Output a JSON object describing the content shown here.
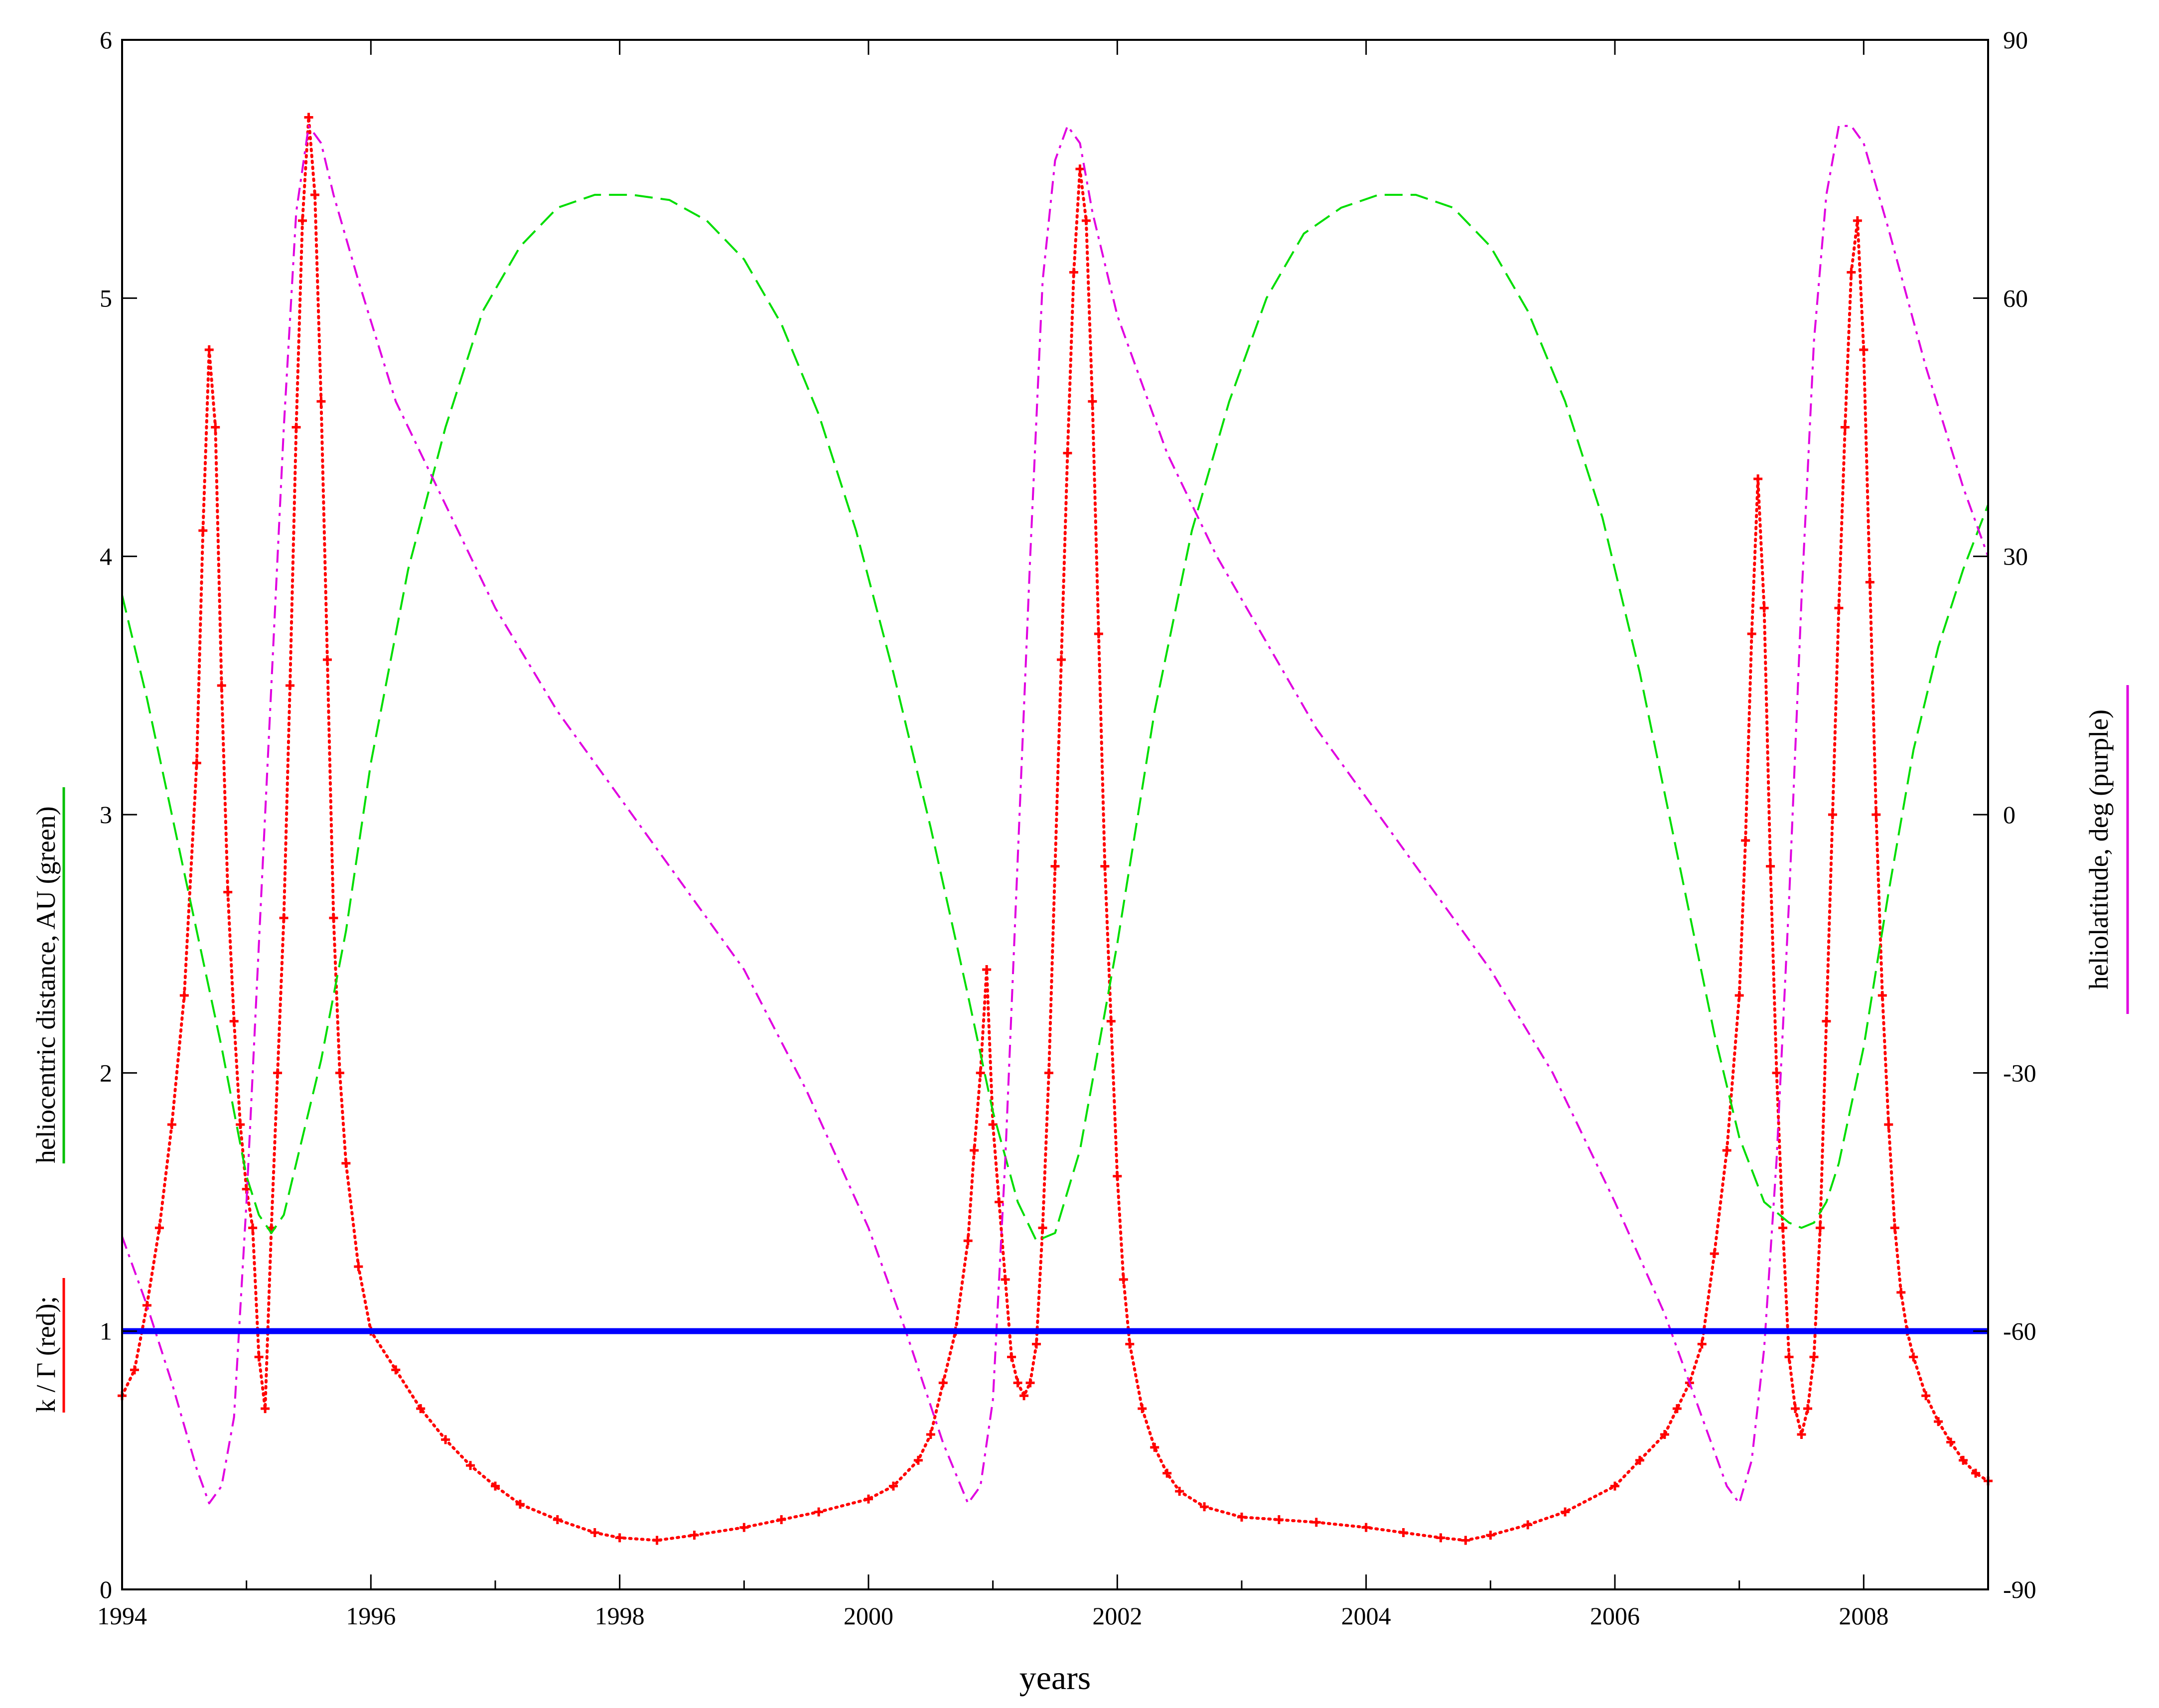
{
  "chart_data": {
    "type": "line",
    "xlabel": "years",
    "ylabel_left": {
      "parts": [
        {
          "text": "k / Γ (red);",
          "underline_color": "#ff0000"
        },
        {
          "text": "heliocentric distance, AU (green)",
          "underline_color": "#00c000"
        }
      ]
    },
    "ylabel_right": {
      "text": "heliolatitude, deg (purple)",
      "underline_color": "#e000e0"
    },
    "xlim": [
      1994,
      2009
    ],
    "ylim_left": [
      0,
      6
    ],
    "ylim_right": [
      -90,
      90
    ],
    "x_ticks": [
      1994,
      1996,
      1998,
      2000,
      2002,
      2004,
      2006,
      2008
    ],
    "x_tick_labels": [
      "1994",
      "1996",
      "1998",
      "2000",
      "2002",
      "2004",
      "2006",
      "2008"
    ],
    "y_left_ticks": [
      0,
      1,
      2,
      3,
      4,
      5,
      6
    ],
    "y_left_tick_labels": [
      "0",
      "1",
      "2",
      "3",
      "4",
      "5",
      "6"
    ],
    "y_right_ticks": [
      -90,
      -60,
      -30,
      0,
      30,
      60,
      90
    ],
    "y_right_tick_labels": [
      "-90",
      "-60",
      "-30",
      "0",
      "30",
      "60",
      "90"
    ],
    "grid": false,
    "reference_line": {
      "y": 1,
      "color": "#0000ff"
    },
    "series": [
      {
        "id": "kgamma",
        "style": "points",
        "color": "#ff0000",
        "axis": "left",
        "x": [
          1994.0,
          1994.1,
          1994.2,
          1994.3,
          1994.4,
          1994.5,
          1994.6,
          1994.65,
          1994.7,
          1994.75,
          1994.8,
          1994.85,
          1994.9,
          1994.95,
          1995.0,
          1995.05,
          1995.1,
          1995.15,
          1995.2,
          1995.25,
          1995.3,
          1995.35,
          1995.4,
          1995.45,
          1995.5,
          1995.55,
          1995.6,
          1995.65,
          1995.7,
          1995.75,
          1995.8,
          1995.9,
          1996.0,
          1996.2,
          1996.4,
          1996.6,
          1996.8,
          1997.0,
          1997.2,
          1997.5,
          1997.8,
          1998.0,
          1998.3,
          1998.6,
          1999.0,
          1999.3,
          1999.6,
          2000.0,
          2000.2,
          2000.4,
          2000.5,
          2000.6,
          2000.7,
          2000.8,
          2000.85,
          2000.9,
          2000.95,
          2001.0,
          2001.05,
          2001.1,
          2001.15,
          2001.2,
          2001.25,
          2001.3,
          2001.35,
          2001.4,
          2001.45,
          2001.5,
          2001.55,
          2001.6,
          2001.65,
          2001.7,
          2001.75,
          2001.8,
          2001.85,
          2001.9,
          2001.95,
          2002.0,
          2002.05,
          2002.1,
          2002.2,
          2002.3,
          2002.4,
          2002.5,
          2002.7,
          2003.0,
          2003.3,
          2003.6,
          2004.0,
          2004.3,
          2004.6,
          2004.8,
          2005.0,
          2005.3,
          2005.6,
          2006.0,
          2006.2,
          2006.4,
          2006.5,
          2006.6,
          2006.7,
          2006.8,
          2006.9,
          2007.0,
          2007.05,
          2007.1,
          2007.15,
          2007.2,
          2007.25,
          2007.3,
          2007.35,
          2007.4,
          2007.45,
          2007.5,
          2007.55,
          2007.6,
          2007.65,
          2007.7,
          2007.75,
          2007.8,
          2007.85,
          2007.9,
          2007.95,
          2008.0,
          2008.05,
          2008.1,
          2008.15,
          2008.2,
          2008.25,
          2008.3,
          2008.35,
          2008.4,
          2008.5,
          2008.6,
          2008.7,
          2008.8,
          2008.9,
          2009.0
        ],
        "y": [
          0.75,
          0.85,
          1.1,
          1.4,
          1.8,
          2.3,
          3.2,
          4.1,
          4.8,
          4.5,
          3.5,
          2.7,
          2.2,
          1.8,
          1.55,
          1.4,
          0.9,
          0.7,
          1.4,
          2.0,
          2.6,
          3.5,
          4.5,
          5.3,
          5.7,
          5.4,
          4.6,
          3.6,
          2.6,
          2.0,
          1.65,
          1.25,
          1.0,
          0.85,
          0.7,
          0.58,
          0.48,
          0.4,
          0.33,
          0.27,
          0.22,
          0.2,
          0.19,
          0.21,
          0.24,
          0.27,
          0.3,
          0.35,
          0.4,
          0.5,
          0.6,
          0.8,
          1.0,
          1.35,
          1.7,
          2.0,
          2.4,
          1.8,
          1.5,
          1.2,
          0.9,
          0.8,
          0.75,
          0.8,
          0.95,
          1.4,
          2.0,
          2.8,
          3.6,
          4.4,
          5.1,
          5.5,
          5.3,
          4.6,
          3.7,
          2.8,
          2.2,
          1.6,
          1.2,
          0.95,
          0.7,
          0.55,
          0.45,
          0.38,
          0.32,
          0.28,
          0.27,
          0.26,
          0.24,
          0.22,
          0.2,
          0.19,
          0.21,
          0.25,
          0.3,
          0.4,
          0.5,
          0.6,
          0.7,
          0.8,
          0.95,
          1.3,
          1.7,
          2.3,
          2.9,
          3.7,
          4.3,
          3.8,
          2.8,
          2.0,
          1.4,
          0.9,
          0.7,
          0.6,
          0.7,
          0.9,
          1.4,
          2.2,
          3.0,
          3.8,
          4.5,
          5.1,
          5.3,
          4.8,
          3.9,
          3.0,
          2.3,
          1.8,
          1.4,
          1.15,
          1.0,
          0.9,
          0.75,
          0.65,
          0.57,
          0.5,
          0.45,
          0.42
        ]
      },
      {
        "id": "distance",
        "style": "dashed",
        "color": "#00dd00",
        "axis": "left",
        "x": [
          1994.0,
          1994.2,
          1994.4,
          1994.6,
          1994.8,
          1995.0,
          1995.1,
          1995.2,
          1995.3,
          1995.4,
          1995.6,
          1995.8,
          1996.0,
          1996.3,
          1996.6,
          1996.9,
          1997.2,
          1997.5,
          1997.8,
          1998.1,
          1998.4,
          1998.7,
          1999.0,
          1999.3,
          1999.6,
          1999.9,
          2000.2,
          2000.5,
          2000.8,
          2001.0,
          2001.2,
          2001.35,
          2001.5,
          2001.7,
          2002.0,
          2002.3,
          2002.6,
          2002.9,
          2003.2,
          2003.5,
          2003.8,
          2004.1,
          2004.4,
          2004.7,
          2005.0,
          2005.3,
          2005.6,
          2005.9,
          2006.2,
          2006.5,
          2006.8,
          2007.0,
          2007.2,
          2007.4,
          2007.5,
          2007.6,
          2007.7,
          2007.8,
          2008.0,
          2008.2,
          2008.4,
          2008.6,
          2008.8,
          2009.0
        ],
        "y": [
          3.85,
          3.45,
          3.0,
          2.55,
          2.1,
          1.6,
          1.45,
          1.38,
          1.45,
          1.65,
          2.05,
          2.55,
          3.2,
          3.95,
          4.5,
          4.95,
          5.2,
          5.35,
          5.4,
          5.4,
          5.38,
          5.3,
          5.15,
          4.9,
          4.55,
          4.1,
          3.55,
          2.95,
          2.3,
          1.85,
          1.5,
          1.35,
          1.38,
          1.7,
          2.5,
          3.4,
          4.1,
          4.6,
          5.0,
          5.25,
          5.35,
          5.4,
          5.4,
          5.35,
          5.2,
          4.95,
          4.6,
          4.15,
          3.55,
          2.85,
          2.15,
          1.75,
          1.5,
          1.42,
          1.4,
          1.42,
          1.5,
          1.65,
          2.1,
          2.7,
          3.25,
          3.65,
          3.95,
          4.2
        ]
      },
      {
        "id": "latitude",
        "style": "dashdot",
        "color": "#e000e0",
        "axis": "right",
        "x": [
          1994.0,
          1994.2,
          1994.4,
          1994.6,
          1994.7,
          1994.8,
          1994.9,
          1995.0,
          1995.1,
          1995.2,
          1995.3,
          1995.4,
          1995.5,
          1995.6,
          1995.7,
          1995.9,
          1996.2,
          1996.6,
          1997.0,
          1997.5,
          1998.0,
          1998.5,
          1999.0,
          1999.5,
          2000.0,
          2000.3,
          2000.6,
          2000.8,
          2000.9,
          2001.0,
          2001.1,
          2001.2,
          2001.3,
          2001.4,
          2001.5,
          2001.6,
          2001.7,
          2001.8,
          2002.0,
          2002.4,
          2002.8,
          2003.2,
          2003.6,
          2004.0,
          2004.5,
          2005.0,
          2005.5,
          2006.0,
          2006.4,
          2006.7,
          2006.9,
          2007.0,
          2007.1,
          2007.2,
          2007.3,
          2007.4,
          2007.5,
          2007.6,
          2007.7,
          2007.8,
          2007.9,
          2008.0,
          2008.2,
          2008.5,
          2008.8,
          2009.0
        ],
        "y": [
          -49,
          -57,
          -66,
          -76,
          -80,
          -78,
          -70,
          -45,
          -15,
          15,
          45,
          70,
          80,
          78,
          72,
          62,
          48,
          36,
          24,
          12,
          2,
          -8,
          -18,
          -32,
          -48,
          -60,
          -73,
          -80,
          -78,
          -68,
          -40,
          -5,
          30,
          62,
          76,
          80,
          78,
          70,
          58,
          42,
          30,
          20,
          10,
          2,
          -8,
          -18,
          -30,
          -45,
          -58,
          -70,
          -78,
          -80,
          -75,
          -62,
          -40,
          -10,
          25,
          55,
          72,
          80,
          80,
          78,
          68,
          52,
          38,
          30
        ]
      }
    ]
  }
}
